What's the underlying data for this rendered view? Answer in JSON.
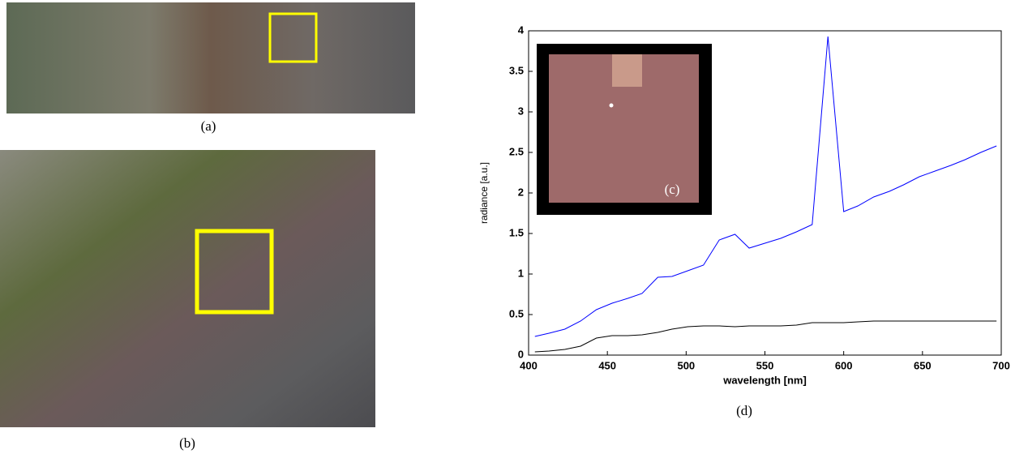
{
  "figure": {
    "labels": [
      "(a)",
      "(b)",
      "(c)",
      "(d)"
    ]
  },
  "chart_data": {
    "type": "line",
    "x_label": "wavelength [nm]",
    "y_label": "radiance [a.u.]",
    "x": [
      404,
      413,
      423,
      433,
      443,
      453,
      463,
      472,
      482,
      491,
      501,
      511,
      521,
      531,
      540,
      550,
      560,
      570,
      580,
      590,
      600,
      609,
      619,
      629,
      638,
      648,
      658,
      668,
      677,
      687,
      697
    ],
    "series": [
      {
        "color": "#0000ff",
        "values": [
          0.23,
          0.27,
          0.32,
          0.42,
          0.56,
          0.64,
          0.7,
          0.76,
          0.96,
          0.97,
          1.04,
          1.11,
          1.42,
          1.49,
          1.32,
          1.38,
          1.44,
          1.52,
          1.61,
          3.93,
          1.77,
          1.84,
          1.95,
          2.02,
          2.1,
          2.2,
          2.27,
          2.34,
          2.41,
          2.5,
          2.58
        ]
      },
      {
        "color": "#000000",
        "values": [
          0.04,
          0.05,
          0.07,
          0.11,
          0.21,
          0.24,
          0.24,
          0.25,
          0.28,
          0.32,
          0.35,
          0.36,
          0.36,
          0.35,
          0.36,
          0.36,
          0.36,
          0.37,
          0.4,
          0.4,
          0.4,
          0.41,
          0.42,
          0.42,
          0.42,
          0.42,
          0.42,
          0.42,
          0.42,
          0.42,
          0.42
        ]
      }
    ],
    "xlim": [
      400,
      700
    ],
    "xticks": [
      400,
      450,
      500,
      550,
      600,
      650,
      700
    ],
    "ylim": [
      0,
      4
    ],
    "yticks": [
      0,
      0.5,
      1,
      1.5,
      2,
      2.5,
      3,
      3.5,
      4
    ]
  }
}
